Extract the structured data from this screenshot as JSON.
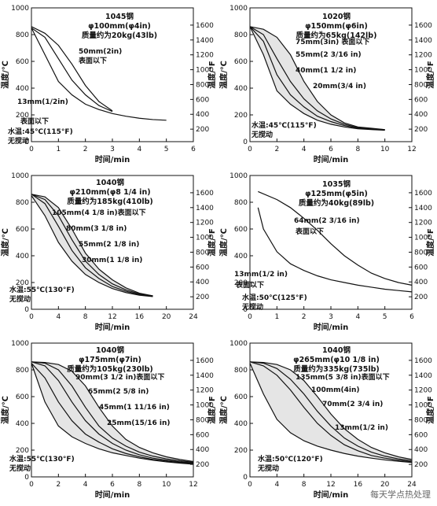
{
  "watermark": "每天学点热处理",
  "chart_data": [
    {
      "type": "line",
      "header": [
        "1045钢",
        "φ100mm(φ4in)",
        "质量约为20kg(43lb)"
      ],
      "xlabel": "时间/min",
      "ylabel_left": "温度/℃",
      "ylabel_right": "温度/°F",
      "xlim": [
        0,
        6
      ],
      "ylim": [
        0,
        1000
      ],
      "xticks": [
        0,
        1,
        2,
        3,
        4,
        5,
        6
      ],
      "yticks": [
        0,
        200,
        400,
        600,
        800,
        1000
      ],
      "yticks_f": [
        200,
        400,
        600,
        800,
        1000,
        1200,
        1400,
        1600
      ],
      "annotations": [
        "50mm(2in)",
        "表面以下",
        "13mm(1/2in)",
        "表面以下",
        "水温:45℃(115°F)",
        "无搅动"
      ],
      "series": [
        {
          "x": [
            0,
            0.5,
            1,
            1.5,
            2,
            2.5,
            3,
            3.5,
            4,
            4.5,
            5
          ],
          "y": [
            850,
            650,
            450,
            350,
            280,
            240,
            210,
            190,
            175,
            165,
            160
          ]
        },
        {
          "x": [
            0,
            0.5,
            1,
            1.5,
            2,
            2.5,
            3
          ],
          "y": [
            860,
            810,
            720,
            580,
            420,
            300,
            230
          ]
        },
        {
          "x": [
            0,
            0.5,
            1,
            1.5,
            2,
            2.5,
            3
          ],
          "y": [
            850,
            780,
            620,
            460,
            350,
            270,
            225
          ]
        }
      ]
    },
    {
      "type": "line",
      "header": [
        "1020钢",
        "φ150mm(φ6in)",
        "质量约为65kg(142lb)"
      ],
      "xlabel": "时间/min",
      "ylabel_left": "温度/℃",
      "ylabel_right": "温度/°F",
      "xlim": [
        0,
        12
      ],
      "ylim": [
        0,
        1000
      ],
      "xticks": [
        0,
        2,
        4,
        6,
        8,
        10,
        12
      ],
      "yticks": [
        0,
        200,
        400,
        600,
        800,
        1000
      ],
      "yticks_f": [
        200,
        400,
        600,
        800,
        1000,
        1200,
        1400,
        1600
      ],
      "annotations": [
        "75mm(3in) 表面以下",
        "55mm(2 3/16 in)",
        "40mm(1 1/2 in)",
        "20mm(3/4 in)",
        "水温:45℃(115°F)",
        "无搅动"
      ],
      "series": [
        {
          "x": [
            0,
            1,
            2,
            3,
            4,
            5,
            6,
            7,
            8,
            9,
            10
          ],
          "y": [
            860,
            840,
            780,
            650,
            450,
            300,
            200,
            140,
            110,
            100,
            90
          ]
        },
        {
          "x": [
            0,
            1,
            2,
            3,
            4,
            5,
            6,
            7,
            8,
            9,
            10
          ],
          "y": [
            860,
            800,
            620,
            450,
            320,
            230,
            170,
            130,
            105,
            95,
            90
          ]
        },
        {
          "x": [
            0,
            1,
            2,
            3,
            4,
            5,
            6,
            7,
            8,
            9,
            10
          ],
          "y": [
            860,
            750,
            500,
            350,
            260,
            190,
            150,
            120,
            100,
            92,
            88
          ]
        },
        {
          "x": [
            0,
            1,
            2,
            3,
            4,
            5,
            6,
            7,
            8,
            9,
            10
          ],
          "y": [
            860,
            650,
            380,
            280,
            210,
            160,
            130,
            110,
            96,
            90,
            85
          ]
        }
      ]
    },
    {
      "type": "line",
      "header": [
        "1040钢",
        "φ210mm(φ8 1/4 in)",
        "质量约为185kg(410lb)"
      ],
      "xlabel": "时间/min",
      "ylabel_left": "温度/℃",
      "ylabel_right": "温度/°F",
      "xlim": [
        0,
        24
      ],
      "ylim": [
        0,
        1000
      ],
      "xticks": [
        0,
        4,
        8,
        12,
        16,
        20,
        24
      ],
      "yticks": [
        0,
        200,
        400,
        600,
        800,
        1000
      ],
      "yticks_f": [
        200,
        400,
        600,
        800,
        1000,
        1200,
        1400,
        1600
      ],
      "annotations": [
        "105mm(4 1/8 in)表面以下",
        "80mm(3 1/8 in)",
        "55mm(2 1/8 in)",
        "30mm(1 1/8 in)",
        "水温:55℃(130°F)",
        "无搅动"
      ],
      "series": [
        {
          "x": [
            0,
            2,
            4,
            6,
            8,
            10,
            12,
            14,
            16,
            18
          ],
          "y": [
            860,
            840,
            760,
            600,
            420,
            300,
            220,
            160,
            120,
            100
          ]
        },
        {
          "x": [
            0,
            2,
            4,
            6,
            8,
            10,
            12,
            14,
            16,
            18
          ],
          "y": [
            860,
            820,
            700,
            520,
            360,
            260,
            190,
            145,
            115,
            100
          ]
        },
        {
          "x": [
            0,
            2,
            4,
            6,
            8,
            10,
            12,
            14,
            16,
            18
          ],
          "y": [
            860,
            790,
            620,
            440,
            310,
            230,
            170,
            135,
            110,
            98
          ]
        },
        {
          "x": [
            0,
            2,
            4,
            6,
            8,
            10,
            12,
            14,
            16,
            18
          ],
          "y": [
            850,
            700,
            500,
            360,
            260,
            200,
            155,
            125,
            105,
            95
          ]
        }
      ]
    },
    {
      "type": "line",
      "header": [
        "1035钢",
        "φ125mm(φ5in)",
        "质量约为40kg(89lb)"
      ],
      "xlabel": "时间/min",
      "ylabel_left": "温度/℃",
      "ylabel_right": "温度/°F",
      "xlim": [
        0,
        6
      ],
      "ylim": [
        0,
        1000
      ],
      "xticks": [
        0,
        1,
        2,
        3,
        4,
        5,
        6
      ],
      "yticks": [
        0,
        200,
        400,
        600,
        800,
        1000
      ],
      "yticks_f": [
        200,
        400,
        600,
        800,
        1000,
        1200,
        1400,
        1600
      ],
      "annotations": [
        "64mm(2 3/16 in)",
        "表面以下",
        "13mm(1/2 in)",
        "表面以下",
        "水温:50℃(125°F)",
        "无搅动"
      ],
      "series": [
        {
          "x": [
            0.3,
            1,
            1.5,
            2,
            2.5,
            3,
            3.5,
            4,
            4.5,
            5,
            5.5,
            6
          ],
          "y": [
            880,
            820,
            760,
            680,
            590,
            490,
            400,
            330,
            270,
            230,
            200,
            180
          ]
        },
        {
          "x": [
            0.3,
            0.5,
            1,
            1.5,
            2,
            2.5,
            3,
            3.5,
            4,
            4.5,
            5,
            5.5,
            6
          ],
          "y": [
            760,
            600,
            430,
            340,
            290,
            250,
            220,
            200,
            180,
            165,
            150,
            140,
            130
          ]
        }
      ]
    },
    {
      "type": "line",
      "header": [
        "1040钢",
        "φ175mm(φ7in)",
        "质量约为105kg(230lb)"
      ],
      "xlabel": "时间/min",
      "ylabel_left": "温度/℃",
      "ylabel_right": "温度/°F",
      "xlim": [
        0,
        12
      ],
      "ylim": [
        0,
        1000
      ],
      "xticks": [
        0,
        2,
        4,
        6,
        8,
        10,
        12
      ],
      "yticks": [
        0,
        200,
        400,
        600,
        800,
        1000
      ],
      "yticks_f": [
        200,
        400,
        600,
        800,
        1000,
        1200,
        1400,
        1600
      ],
      "annotations": [
        "90mm(3 1/2 in)表面以下",
        "65mm(2 5/8 in)",
        "45mm(1 11/16 in)",
        "25mm(15/16 in)",
        "水温:55℃(130°F)",
        "无搅动"
      ],
      "series": [
        {
          "x": [
            0,
            1,
            2,
            3,
            4,
            5,
            6,
            7,
            8,
            9,
            10,
            11,
            12
          ],
          "y": [
            860,
            855,
            840,
            790,
            680,
            520,
            380,
            280,
            220,
            180,
            150,
            130,
            115
          ]
        },
        {
          "x": [
            0,
            1,
            2,
            3,
            4,
            5,
            6,
            7,
            8,
            9,
            10,
            11,
            12
          ],
          "y": [
            860,
            850,
            800,
            680,
            520,
            380,
            290,
            230,
            185,
            155,
            135,
            120,
            110
          ]
        },
        {
          "x": [
            0,
            1,
            2,
            3,
            4,
            5,
            6,
            7,
            8,
            9,
            10,
            11,
            12
          ],
          "y": [
            860,
            830,
            720,
            560,
            420,
            320,
            250,
            200,
            165,
            140,
            125,
            112,
            105
          ]
        },
        {
          "x": [
            0,
            1,
            2,
            3,
            4,
            5,
            6,
            7,
            8,
            9,
            10,
            11,
            12
          ],
          "y": [
            850,
            740,
            560,
            420,
            320,
            260,
            210,
            175,
            150,
            130,
            118,
            108,
            100
          ]
        },
        {
          "x": [
            0,
            1,
            2,
            3,
            4,
            5,
            6,
            7,
            8,
            9,
            10,
            11,
            12
          ],
          "y": [
            850,
            560,
            380,
            300,
            250,
            210,
            180,
            160,
            140,
            125,
            112,
            103,
            95
          ]
        }
      ]
    },
    {
      "type": "line",
      "header": [
        "1040钢",
        "φ265mm(φ10 1/8 in)",
        "质量约为335kg(735lb)"
      ],
      "xlabel": "时间/min",
      "ylabel_left": "温度/℃",
      "ylabel_right": "温度/°F",
      "xlim": [
        0,
        24
      ],
      "ylim": [
        0,
        1000
      ],
      "xticks": [
        0,
        4,
        8,
        12,
        16,
        20,
        24
      ],
      "yticks": [
        0,
        200,
        400,
        600,
        800,
        1000
      ],
      "yticks_f": [
        200,
        400,
        600,
        800,
        1000,
        1200,
        1400,
        1600
      ],
      "annotations": [
        "135mm(5 3/8 in)表面以下",
        "100mm(4in)",
        "70mm(2 3/4 in)",
        "13mm(1/2 in)",
        "水温:50℃(120°F)",
        "无搅动"
      ],
      "series": [
        {
          "x": [
            0,
            2,
            4,
            6,
            8,
            10,
            12,
            14,
            16,
            18,
            20,
            22,
            24
          ],
          "y": [
            860,
            855,
            840,
            800,
            720,
            600,
            470,
            360,
            280,
            220,
            180,
            150,
            130
          ]
        },
        {
          "x": [
            0,
            2,
            4,
            6,
            8,
            10,
            12,
            14,
            16,
            18,
            20,
            22,
            24
          ],
          "y": [
            860,
            850,
            810,
            730,
            620,
            490,
            380,
            290,
            230,
            185,
            155,
            135,
            120
          ]
        },
        {
          "x": [
            0,
            2,
            4,
            6,
            8,
            10,
            12,
            14,
            16,
            18,
            20,
            22,
            24
          ],
          "y": [
            860,
            830,
            760,
            650,
            520,
            400,
            310,
            240,
            195,
            160,
            140,
            125,
            112
          ]
        },
        {
          "x": [
            0,
            2,
            4,
            6,
            8,
            10,
            12,
            14,
            16,
            18,
            20,
            22,
            24
          ],
          "y": [
            850,
            620,
            430,
            330,
            270,
            230,
            200,
            175,
            155,
            140,
            127,
            117,
            108
          ]
        }
      ]
    }
  ]
}
